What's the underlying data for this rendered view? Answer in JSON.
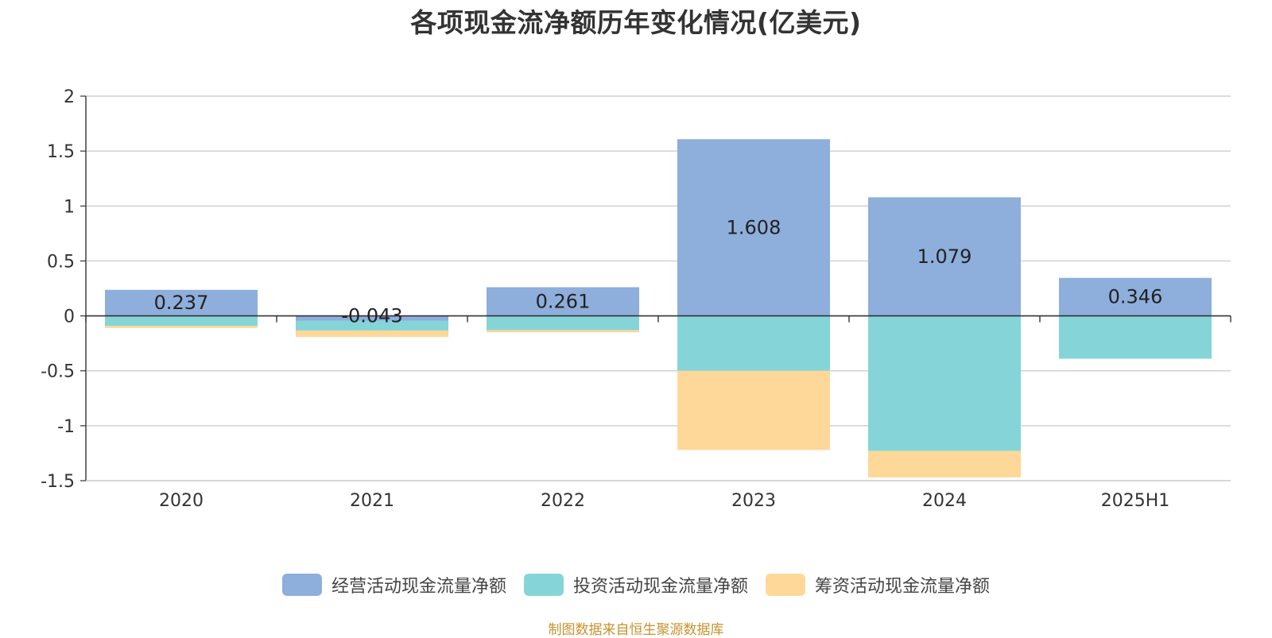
{
  "title": "各项现金流净额历年变化情况(亿美元)",
  "source": "制图数据来自恒生聚源数据库",
  "colors": {
    "operating": "#8eaedb",
    "investing": "#85d5d8",
    "financing": "#fed899",
    "grid": "#c8c8c8",
    "axis": "#333333",
    "text": "#333333"
  },
  "chart_data": {
    "type": "bar",
    "stacked": true,
    "categories": [
      "2020",
      "2021",
      "2022",
      "2023",
      "2024",
      "2025H1"
    ],
    "ylim": [
      -1.5,
      2
    ],
    "yticks": [
      2,
      1.5,
      1,
      0.5,
      0,
      -0.5,
      -1,
      -1.5
    ],
    "ytick_labels": [
      "2",
      "1.5",
      "1",
      "0.5",
      "0",
      "-0.5",
      "-1",
      "-1.5"
    ],
    "grid": true,
    "legend_position": "bottom",
    "series": [
      {
        "name": "经营活动现金流量净额",
        "color_key": "operating",
        "values": [
          0.237,
          -0.043,
          0.261,
          1.608,
          1.079,
          0.346
        ],
        "labels": [
          "0.237",
          "-0.043",
          "0.261",
          "1.608",
          "1.079",
          "0.346"
        ]
      },
      {
        "name": "投资活动现金流量净额",
        "color_key": "investing",
        "values": [
          -0.09,
          -0.09,
          -0.13,
          -0.5,
          -1.23,
          -0.39
        ]
      },
      {
        "name": "筹资活动现金流量净额",
        "color_key": "financing",
        "values": [
          -0.02,
          -0.06,
          -0.02,
          -0.72,
          -0.24,
          0
        ]
      }
    ]
  }
}
